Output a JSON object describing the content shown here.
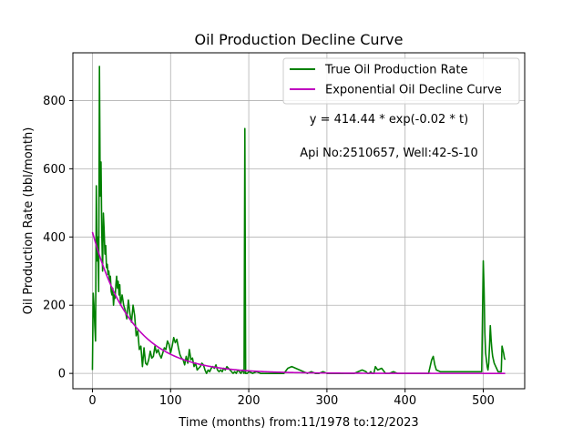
{
  "chart_data": {
    "type": "line",
    "title": "Oil Production Decline Curve",
    "xlabel": "Time (months) from:11/1978 to:12/2023",
    "ylabel": "Oil Production Rate (bbl/month)",
    "xlim": [
      -25,
      553
    ],
    "ylim": [
      -45,
      940
    ],
    "xticks": [
      0,
      100,
      200,
      300,
      400,
      500
    ],
    "yticks": [
      0,
      200,
      400,
      600,
      800
    ],
    "grid": true,
    "legend_position": "top-right",
    "annotations": [
      "y = 414.44 * exp(-0.02 * t)",
      "Api No:2510657, Well:42-S-10"
    ],
    "series": [
      {
        "name": "True Oil Production Rate",
        "color": "#008000",
        "x": [
          0,
          1,
          2,
          3,
          4,
          5,
          6,
          7,
          8,
          9,
          10,
          11,
          12,
          13,
          14,
          15,
          16,
          17,
          18,
          19,
          20,
          21,
          22,
          23,
          24,
          25,
          26,
          27,
          28,
          29,
          30,
          31,
          32,
          33,
          34,
          35,
          36,
          38,
          40,
          42,
          44,
          46,
          48,
          50,
          52,
          54,
          56,
          58,
          60,
          62,
          64,
          66,
          68,
          70,
          72,
          74,
          76,
          78,
          80,
          82,
          84,
          86,
          88,
          90,
          92,
          94,
          96,
          98,
          100,
          102,
          104,
          106,
          108,
          110,
          112,
          114,
          116,
          118,
          120,
          122,
          124,
          126,
          128,
          130,
          132,
          134,
          136,
          138,
          140,
          142,
          144,
          146,
          148,
          150,
          152,
          154,
          156,
          158,
          160,
          162,
          164,
          166,
          168,
          170,
          172,
          174,
          176,
          178,
          180,
          182,
          184,
          186,
          188,
          190,
          192,
          193,
          194,
          195,
          196,
          198,
          200,
          205,
          210,
          215,
          220,
          225,
          230,
          235,
          240,
          245,
          250,
          255,
          260,
          265,
          270,
          275,
          280,
          285,
          290,
          295,
          300,
          305,
          310,
          315,
          320,
          325,
          330,
          335,
          340,
          345,
          350,
          352,
          354,
          356,
          358,
          360,
          362,
          365,
          370,
          375,
          380,
          385,
          390,
          395,
          400,
          405,
          410,
          415,
          420,
          425,
          428,
          430,
          432,
          434,
          436,
          438,
          440,
          445,
          450,
          455,
          460,
          465,
          470,
          475,
          480,
          485,
          490,
          495,
          498,
          500,
          501,
          502,
          503,
          504,
          505,
          506,
          507,
          508,
          509,
          510,
          511,
          512,
          513,
          514,
          515,
          516,
          517,
          518,
          519,
          520,
          521,
          522,
          523,
          524,
          525,
          526,
          527,
          528
        ],
        "y": [
          10,
          235,
          200,
          140,
          95,
          550,
          330,
          400,
          240,
          900,
          520,
          620,
          410,
          300,
          470,
          420,
          350,
          375,
          310,
          320,
          290,
          300,
          270,
          285,
          240,
          230,
          250,
          200,
          230,
          220,
          260,
          285,
          250,
          270,
          230,
          260,
          200,
          230,
          200,
          185,
          160,
          215,
          175,
          150,
          200,
          170,
          110,
          125,
          70,
          80,
          20,
          75,
          30,
          25,
          40,
          65,
          45,
          50,
          80,
          60,
          70,
          55,
          45,
          60,
          75,
          70,
          95,
          85,
          60,
          80,
          105,
          90,
          100,
          75,
          55,
          45,
          40,
          25,
          50,
          30,
          70,
          40,
          45,
          20,
          30,
          10,
          15,
          20,
          30,
          25,
          10,
          0,
          10,
          5,
          15,
          20,
          15,
          25,
          10,
          5,
          10,
          5,
          15,
          10,
          20,
          15,
          10,
          5,
          0,
          5,
          0,
          10,
          5,
          0,
          10,
          5,
          0,
          718,
          0,
          0,
          5,
          0,
          5,
          0,
          0,
          0,
          0,
          0,
          0,
          0,
          15,
          20,
          15,
          10,
          5,
          0,
          5,
          0,
          0,
          5,
          0,
          0,
          0,
          0,
          0,
          0,
          0,
          0,
          5,
          10,
          5,
          0,
          0,
          5,
          0,
          0,
          20,
          10,
          15,
          0,
          0,
          5,
          0,
          0,
          0,
          0,
          0,
          0,
          0,
          0,
          0,
          0,
          20,
          40,
          50,
          25,
          10,
          5,
          5,
          5,
          5,
          5,
          5,
          5,
          5,
          5,
          5,
          5,
          5,
          330,
          250,
          120,
          60,
          40,
          20,
          10,
          30,
          80,
          140,
          100,
          70,
          50,
          40,
          30,
          25,
          20,
          15,
          10,
          5,
          5,
          5,
          5,
          5,
          80,
          70,
          60,
          45,
          40
        ]
      },
      {
        "name": "Exponential Oil Decline Curve",
        "color": "#bf00bf",
        "a": 414.44,
        "b": -0.02,
        "x_range": [
          0,
          528
        ]
      }
    ]
  }
}
